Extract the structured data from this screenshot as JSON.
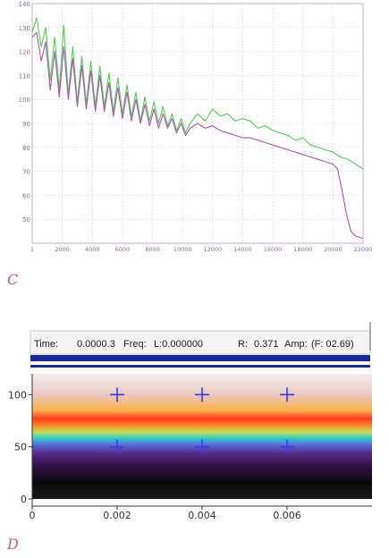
{
  "panel_c": {
    "letter": "C"
  },
  "panel_d": {
    "letter": "D",
    "readout": {
      "time_label": "Time:",
      "time_value": "0.0000.3",
      "freq_label": "Freq:",
      "freq_value": "L:0.000000",
      "right_label": "R:",
      "right_value": "0.371",
      "tail_label": "Amp:",
      "tail_value": "(F: 02.69)"
    }
  },
  "colors": {
    "green_series": "#4fcf4f",
    "purple_series": "#b04fb6",
    "grid": "#cfa8cf",
    "panel_c_tick": "#8a6aa6",
    "panel_d_axis": "#333333",
    "band_top": "#f6eef2",
    "band_red": "#ff3b1f",
    "band_cyan": "#2fc6c8",
    "band_purple": "#5a2a8a",
    "band_black": "#0a0a0a",
    "bar_blue": "#1b2a9a",
    "cross_marker": "#3a3ae0"
  },
  "chart_data": [
    {
      "type": "line",
      "title": "",
      "xlabel": "",
      "ylabel": "",
      "xlim": [
        0,
        22000
      ],
      "ylim": [
        40,
        140
      ],
      "grid": true,
      "x_tick_labels": [
        "1",
        "2000",
        "4000",
        "6000",
        "8000",
        "10000",
        "12000",
        "14000",
        "16000",
        "18000",
        "20000",
        "22000"
      ],
      "y_tick_labels": [
        "140",
        "130",
        "120",
        "110",
        "100",
        "90",
        "80",
        "70",
        "60",
        "50"
      ],
      "series": [
        {
          "color": "green",
          "x": [
            1,
            300,
            600,
            900,
            1200,
            1500,
            1800,
            2100,
            2400,
            2700,
            3000,
            3300,
            3600,
            3900,
            4200,
            4500,
            4800,
            5100,
            5400,
            5700,
            6000,
            6300,
            6600,
            6900,
            7200,
            7500,
            7800,
            8100,
            8400,
            8700,
            9000,
            9300,
            9600,
            9900,
            10200,
            10500,
            11000,
            11500,
            12000,
            12500,
            13000,
            13500,
            14000,
            14500,
            15000,
            15500,
            16000,
            16500,
            17000,
            17500,
            18000,
            18500,
            19000,
            19500,
            20000,
            20500,
            21000,
            21500,
            22000
          ],
          "values": [
            128,
            134,
            122,
            130,
            108,
            126,
            104,
            131,
            102,
            122,
            99,
            118,
            98,
            116,
            97,
            114,
            97,
            111,
            95,
            109,
            94,
            106,
            93,
            103,
            91,
            101,
            91,
            99,
            90,
            97,
            89,
            94,
            87,
            92,
            86,
            90,
            94,
            91,
            96,
            93,
            94,
            91,
            92,
            91,
            88,
            89,
            87,
            86,
            85,
            83,
            84,
            81,
            80,
            79,
            78,
            76,
            75,
            73,
            71
          ]
        },
        {
          "color": "purple",
          "x": [
            1,
            300,
            600,
            900,
            1200,
            1500,
            1800,
            2100,
            2400,
            2700,
            3000,
            3300,
            3600,
            3900,
            4200,
            4500,
            4800,
            5100,
            5400,
            5700,
            6000,
            6300,
            6600,
            6900,
            7200,
            7500,
            7800,
            8100,
            8400,
            8700,
            9000,
            9300,
            9600,
            9900,
            10200,
            10500,
            11000,
            11500,
            12000,
            12500,
            13000,
            13500,
            14000,
            14500,
            15000,
            15500,
            16000,
            16500,
            17000,
            17500,
            18000,
            18500,
            19000,
            19500,
            20000,
            20300,
            20600,
            20900,
            21200,
            21500,
            22000
          ],
          "values": [
            126,
            128,
            116,
            124,
            104,
            120,
            101,
            122,
            100,
            117,
            97,
            114,
            96,
            112,
            95,
            110,
            95,
            107,
            93,
            105,
            92,
            103,
            91,
            100,
            90,
            98,
            89,
            96,
            88,
            94,
            88,
            92,
            86,
            90,
            85,
            88,
            90,
            88,
            89,
            87,
            86,
            85,
            84,
            84,
            83,
            82,
            81,
            80,
            79,
            78,
            77,
            76,
            75,
            74,
            73,
            71,
            62,
            52,
            45,
            43,
            42
          ]
        }
      ]
    },
    {
      "type": "heatmap",
      "title": "",
      "xlabel": "",
      "ylabel": "",
      "xlim": [
        0,
        0.008
      ],
      "ylim": [
        0,
        120
      ],
      "grid": false,
      "x_tick_labels": [
        "0",
        "0.002",
        "0.004",
        "0.006"
      ],
      "y_tick_labels": [
        "100",
        "50",
        "0"
      ],
      "bands": [
        {
          "y": 120,
          "color": "#f6eef2"
        },
        {
          "y": 100,
          "color": "#e8c8c0"
        },
        {
          "y": 85,
          "color": "#ffb04a"
        },
        {
          "y": 77,
          "color": "#ff3b1f"
        },
        {
          "y": 70,
          "color": "#ff8a2a"
        },
        {
          "y": 64,
          "color": "#b9e15a"
        },
        {
          "y": 58,
          "color": "#2fc6c8"
        },
        {
          "y": 52,
          "color": "#5a6ad8"
        },
        {
          "y": 44,
          "color": "#5a2a8a"
        },
        {
          "y": 30,
          "color": "#2a1040"
        },
        {
          "y": 15,
          "color": "#0a0a0a"
        },
        {
          "y": 0,
          "color": "#1a1a1a"
        }
      ],
      "markers": [
        {
          "x": 0.002,
          "y": 100
        },
        {
          "x": 0.004,
          "y": 100
        },
        {
          "x": 0.006,
          "y": 100
        },
        {
          "x": 0.002,
          "y": 50
        },
        {
          "x": 0.004,
          "y": 50
        },
        {
          "x": 0.006,
          "y": 50
        }
      ]
    }
  ]
}
